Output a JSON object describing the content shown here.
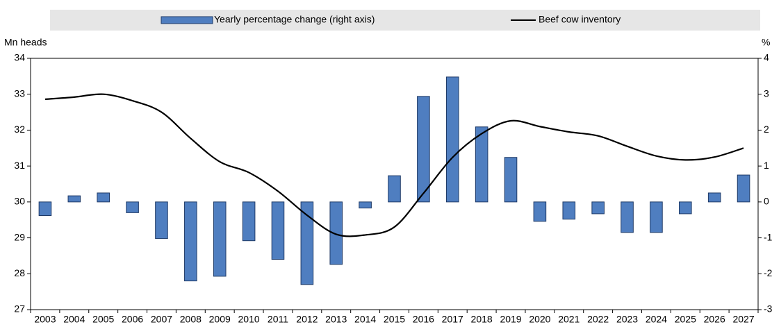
{
  "chart_data": {
    "type": "bar-line",
    "y_label": "Mn heads",
    "y2_label": "%",
    "categories": [
      "2003",
      "2004",
      "2005",
      "2006",
      "2007",
      "2008",
      "2009",
      "2010",
      "2011",
      "2012",
      "2013",
      "2014",
      "2015",
      "2016",
      "2017",
      "2018",
      "2019",
      "2020",
      "2021",
      "2022",
      "2023",
      "2024",
      "2025",
      "2026",
      "2027"
    ],
    "series": [
      {
        "name": "Yearly percentage change (right axis)",
        "type": "bar",
        "axis": "y2",
        "color": "#4f7ec0",
        "values": [
          -0.38,
          0.17,
          0.25,
          -0.3,
          -1.02,
          -2.2,
          -2.07,
          -1.08,
          -1.6,
          -2.3,
          -1.74,
          -0.17,
          0.73,
          2.94,
          3.48,
          2.09,
          1.24,
          -0.54,
          -0.48,
          -0.33,
          -0.85,
          -0.85,
          -0.33,
          0.25,
          0.75
        ]
      },
      {
        "name": "Beef cow inventory",
        "type": "line",
        "color": "#000000",
        "values": [
          32.86,
          32.92,
          33.0,
          32.82,
          32.5,
          31.77,
          31.12,
          30.82,
          30.3,
          29.63,
          29.1,
          29.08,
          29.3,
          30.24,
          31.24,
          31.9,
          32.26,
          32.1,
          31.95,
          31.84,
          31.55,
          31.28,
          31.17,
          31.25,
          31.5
        ]
      }
    ],
    "ylim": [
      27,
      34
    ],
    "yticks": [
      27,
      28,
      29,
      30,
      31,
      32,
      33,
      34
    ],
    "y2lim": [
      -3,
      4
    ],
    "y2ticks": [
      -3,
      -2,
      -1,
      0,
      1,
      2,
      3,
      4
    ]
  }
}
